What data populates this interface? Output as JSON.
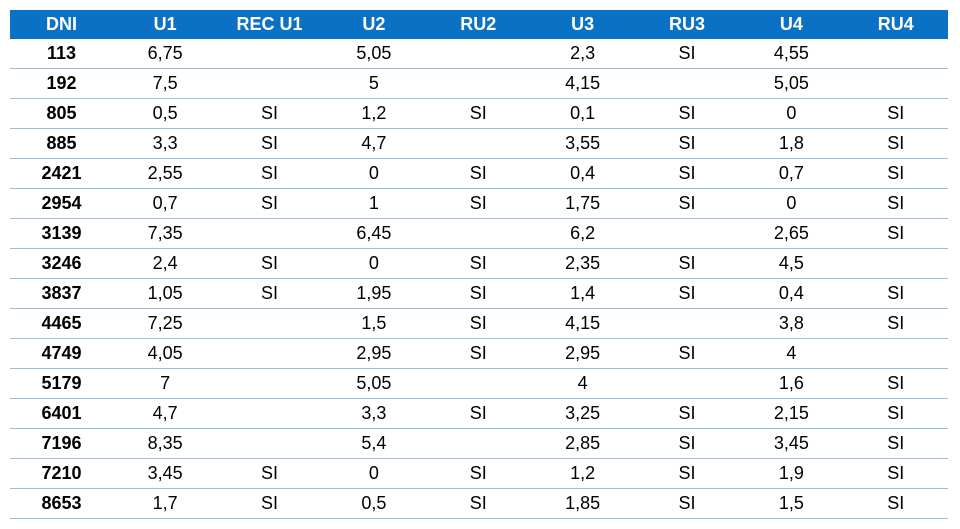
{
  "table": {
    "headers": [
      "DNI",
      "U1",
      "REC U1",
      "U2",
      "RU2",
      "U3",
      "RU3",
      "U4",
      "RU4"
    ],
    "rows": [
      [
        "113",
        "6,75",
        "",
        "5,05",
        "",
        "2,3",
        "SI",
        "4,55",
        ""
      ],
      [
        "192",
        "7,5",
        "",
        "5",
        "",
        "4,15",
        "",
        "5,05",
        ""
      ],
      [
        "805",
        "0,5",
        "SI",
        "1,2",
        "SI",
        "0,1",
        "SI",
        "0",
        "SI"
      ],
      [
        "885",
        "3,3",
        "SI",
        "4,7",
        "",
        "3,55",
        "SI",
        "1,8",
        "SI"
      ],
      [
        "2421",
        "2,55",
        "SI",
        "0",
        "SI",
        "0,4",
        "SI",
        "0,7",
        "SI"
      ],
      [
        "2954",
        "0,7",
        "SI",
        "1",
        "SI",
        "1,75",
        "SI",
        "0",
        "SI"
      ],
      [
        "3139",
        "7,35",
        "",
        "6,45",
        "",
        "6,2",
        "",
        "2,65",
        "SI"
      ],
      [
        "3246",
        "2,4",
        "SI",
        "0",
        "SI",
        "2,35",
        "SI",
        "4,5",
        ""
      ],
      [
        "3837",
        "1,05",
        "SI",
        "1,95",
        "SI",
        "1,4",
        "SI",
        "0,4",
        "SI"
      ],
      [
        "4465",
        "7,25",
        "",
        "1,5",
        "SI",
        "4,15",
        "",
        "3,8",
        "SI"
      ],
      [
        "4749",
        "4,05",
        "",
        "2,95",
        "SI",
        "2,95",
        "SI",
        "4",
        ""
      ],
      [
        "5179",
        "7",
        "",
        "5,05",
        "",
        "4",
        "",
        "1,6",
        "SI"
      ],
      [
        "6401",
        "4,7",
        "",
        "3,3",
        "SI",
        "3,25",
        "SI",
        "2,15",
        "SI"
      ],
      [
        "7196",
        "8,35",
        "",
        "5,4",
        "",
        "2,85",
        "SI",
        "3,45",
        "SI"
      ],
      [
        "7210",
        "3,45",
        "SI",
        "0",
        "SI",
        "1,2",
        "SI",
        "1,9",
        "SI"
      ],
      [
        "8653",
        "1,7",
        "SI",
        "0,5",
        "SI",
        "1,85",
        "SI",
        "1,5",
        "SI"
      ]
    ]
  },
  "colors": {
    "header_background": "#0b71c4",
    "header_text": "#ffffff",
    "row_divider": "#9bbde3"
  }
}
